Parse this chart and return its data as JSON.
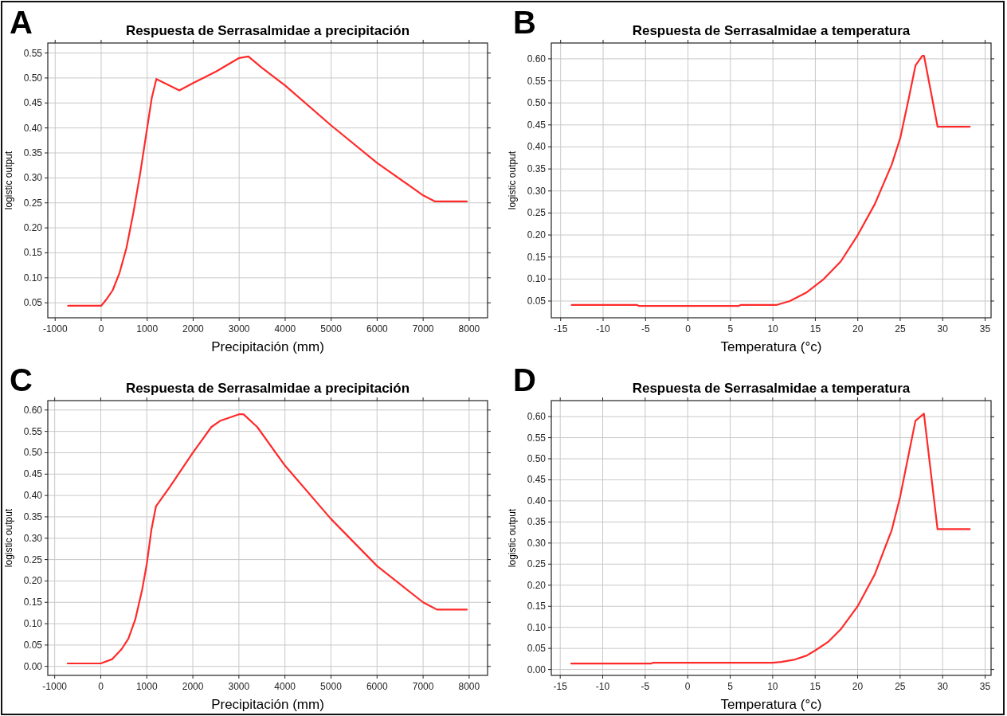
{
  "chart_data": [
    {
      "type": "line",
      "title": "Respuesta de Serrasalmidae a precipitación",
      "xlabel": "Precipitación (mm)",
      "ylabel": "logistic output",
      "annotations": [
        "A"
      ],
      "grid": true,
      "xlim": [
        -1160,
        8400
      ],
      "ylim": [
        0.02,
        0.57
      ],
      "xticks": [
        -1000,
        0,
        1000,
        2000,
        3000,
        4000,
        5000,
        6000,
        7000,
        8000
      ],
      "yticks": [
        {
          "value": 0.05,
          "label": "0.05"
        },
        {
          "value": 0.1,
          "label": "0.10"
        },
        {
          "value": 0.15,
          "label": "0.15"
        },
        {
          "value": 0.2,
          "label": "0.20"
        },
        {
          "value": 0.25,
          "label": "0.25"
        },
        {
          "value": 0.3,
          "label": "0.30"
        },
        {
          "value": 0.35,
          "label": "0.35"
        },
        {
          "value": 0.4,
          "label": "0.40"
        },
        {
          "value": 0.45,
          "label": "0.45"
        },
        {
          "value": 0.5,
          "label": "0.50"
        },
        {
          "value": 0.55,
          "label": "0.55"
        }
      ],
      "series": [
        {
          "color": "#ff2a2a",
          "x": [
            -720,
            0,
            100,
            250,
            400,
            550,
            700,
            850,
            1000,
            1100,
            1200,
            1700,
            2000,
            2500,
            3000,
            3200,
            3500,
            4000,
            5000,
            6000,
            7000,
            7250,
            7950
          ],
          "values": [
            0.044,
            0.044,
            0.055,
            0.075,
            0.11,
            0.16,
            0.23,
            0.31,
            0.4,
            0.46,
            0.498,
            0.475,
            0.49,
            0.513,
            0.54,
            0.543,
            0.52,
            0.485,
            0.405,
            0.33,
            0.265,
            0.253,
            0.253
          ]
        }
      ]
    },
    {
      "type": "line",
      "title": "Respuesta de Serrasalmidae a temperatura",
      "xlabel": "Temperatura (°c)",
      "ylabel": "logistic output",
      "annotations": [
        "B"
      ],
      "grid": true,
      "xlim": [
        -16.1,
        35.7
      ],
      "ylim": [
        0.012,
        0.636
      ],
      "xticks": [
        -15,
        -10,
        -5,
        0,
        5,
        10,
        15,
        20,
        25,
        30,
        35
      ],
      "yticks": [
        {
          "value": 0.05,
          "label": "0.05"
        },
        {
          "value": 0.1,
          "label": "0.10"
        },
        {
          "value": 0.15,
          "label": "0.15"
        },
        {
          "value": 0.2,
          "label": "0.20"
        },
        {
          "value": 0.25,
          "label": "0.25"
        },
        {
          "value": 0.3,
          "label": "0.30"
        },
        {
          "value": 0.35,
          "label": "0.35"
        },
        {
          "value": 0.4,
          "label": "0.40"
        },
        {
          "value": 0.45,
          "label": "0.45"
        },
        {
          "value": 0.5,
          "label": "0.50"
        },
        {
          "value": 0.55,
          "label": "0.55"
        },
        {
          "value": 0.6,
          "label": "0.60"
        }
      ],
      "series": [
        {
          "color": "#ff2a2a",
          "x": [
            -13.7,
            -6,
            -5.8,
            6,
            6.2,
            10.4,
            12,
            14,
            16,
            18,
            20,
            22,
            24,
            25,
            26,
            26.8,
            27.6,
            27.8,
            29.4,
            33.2
          ],
          "values": [
            0.041,
            0.041,
            0.039,
            0.039,
            0.041,
            0.041,
            0.05,
            0.07,
            0.1,
            0.14,
            0.2,
            0.27,
            0.36,
            0.42,
            0.51,
            0.585,
            0.607,
            0.607,
            0.446,
            0.446
          ]
        }
      ]
    },
    {
      "type": "line",
      "title": "Respuesta de Serrasalmidae a precipitación",
      "xlabel": "Precipitación (mm)",
      "ylabel": "logistic output",
      "annotations": [
        "C"
      ],
      "grid": true,
      "xlim": [
        -1150,
        8400
      ],
      "ylim": [
        -0.021,
        0.622
      ],
      "xticks": [
        -1000,
        0,
        1000,
        2000,
        3000,
        4000,
        5000,
        6000,
        7000,
        8000
      ],
      "yticks": [
        {
          "value": 0,
          "label": "0.00"
        },
        {
          "value": 0.05,
          "label": "0.05"
        },
        {
          "value": 0.1,
          "label": "0.10"
        },
        {
          "value": 0.15,
          "label": "0.15"
        },
        {
          "value": 0.2,
          "label": "0.20"
        },
        {
          "value": 0.25,
          "label": "0.25"
        },
        {
          "value": 0.3,
          "label": "0.30"
        },
        {
          "value": 0.35,
          "label": "0.35"
        },
        {
          "value": 0.4,
          "label": "0.40"
        },
        {
          "value": 0.45,
          "label": "0.45"
        },
        {
          "value": 0.5,
          "label": "0.50"
        },
        {
          "value": 0.55,
          "label": "0.55"
        },
        {
          "value": 0.6,
          "label": "0.60"
        }
      ],
      "series": [
        {
          "color": "#ff2a2a",
          "x": [
            -720,
            0,
            250,
            450,
            600,
            750,
            900,
            1000,
            1100,
            1200,
            1500,
            2000,
            2400,
            2600,
            3000,
            3100,
            3400,
            4000,
            5000,
            6000,
            7000,
            7300,
            7950
          ],
          "values": [
            0.007,
            0.007,
            0.017,
            0.04,
            0.065,
            0.11,
            0.18,
            0.24,
            0.32,
            0.375,
            0.42,
            0.5,
            0.56,
            0.575,
            0.59,
            0.59,
            0.56,
            0.47,
            0.345,
            0.235,
            0.15,
            0.133,
            0.133
          ]
        }
      ]
    },
    {
      "type": "line",
      "title": "Respuesta de Serrasalmidae a temperatura",
      "xlabel": "Temperatura (°c)",
      "ylabel": "logistic output",
      "annotations": [
        "D"
      ],
      "grid": true,
      "xlim": [
        -16.05,
        35.7
      ],
      "ylim": [
        -0.014,
        0.638
      ],
      "xticks": [
        -15,
        -10,
        -5,
        0,
        5,
        10,
        15,
        20,
        25,
        30,
        35
      ],
      "yticks": [
        {
          "value": 0,
          "label": "0.00"
        },
        {
          "value": 0.05,
          "label": "0.05"
        },
        {
          "value": 0.1,
          "label": "0.10"
        },
        {
          "value": 0.15,
          "label": "0.15"
        },
        {
          "value": 0.2,
          "label": "0.20"
        },
        {
          "value": 0.25,
          "label": "0.25"
        },
        {
          "value": 0.3,
          "label": "0.30"
        },
        {
          "value": 0.35,
          "label": "0.35"
        },
        {
          "value": 0.4,
          "label": "0.40"
        },
        {
          "value": 0.45,
          "label": "0.45"
        },
        {
          "value": 0.5,
          "label": "0.50"
        },
        {
          "value": 0.55,
          "label": "0.55"
        },
        {
          "value": 0.6,
          "label": "0.60"
        }
      ],
      "series": [
        {
          "color": "#ff2a2a",
          "x": [
            -13.7,
            -4.3,
            -4.1,
            10,
            11,
            12.5,
            14,
            15,
            16.5,
            18,
            20,
            22,
            24,
            25,
            26,
            26.8,
            27.8,
            29.4,
            33.2
          ],
          "values": [
            0.014,
            0.014,
            0.016,
            0.016,
            0.018,
            0.023,
            0.033,
            0.045,
            0.065,
            0.095,
            0.15,
            0.225,
            0.33,
            0.41,
            0.51,
            0.59,
            0.607,
            0.333,
            0.333
          ]
        }
      ]
    }
  ]
}
